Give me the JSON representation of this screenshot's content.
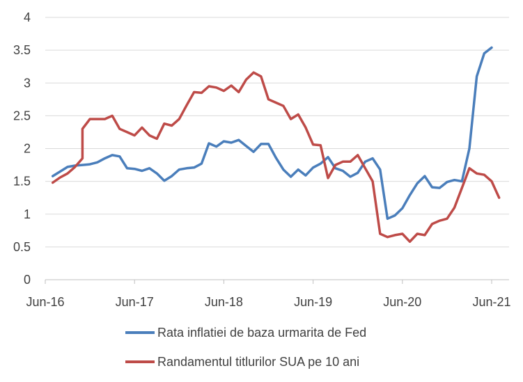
{
  "chart_data": {
    "type": "line",
    "title": "",
    "xlabel": "",
    "ylabel": "",
    "ylim": [
      0,
      4
    ],
    "yticks": [
      0,
      0.5,
      1,
      1.5,
      2,
      2.5,
      3,
      3.5,
      4
    ],
    "ytick_labels": [
      "0",
      "0.5",
      "1",
      "1.5",
      "2",
      "2.5",
      "3",
      "3.5",
      "4"
    ],
    "xlim": [
      "2016-06",
      "2021-08"
    ],
    "xticks": [
      "2016-06",
      "2017-06",
      "2018-06",
      "2019-06",
      "2020-06",
      "2021-06"
    ],
    "xtick_labels": [
      "Jun-16",
      "Jun-17",
      "Jun-18",
      "Jun-19",
      "Jun-20",
      "Jun-21"
    ],
    "grid": "horizontal",
    "legend_position": "bottom",
    "series": [
      {
        "name": "Rata inflatiei de baza urmarita de Fed",
        "color": "#4a7ebb",
        "points": [
          [
            "2016-07",
            1.58
          ],
          [
            "2016-08",
            1.65
          ],
          [
            "2016-09",
            1.72
          ],
          [
            "2016-10",
            1.74
          ],
          [
            "2016-11",
            1.75
          ],
          [
            "2016-12",
            1.76
          ],
          [
            "2017-01",
            1.79
          ],
          [
            "2017-02",
            1.85
          ],
          [
            "2017-03",
            1.9
          ],
          [
            "2017-04",
            1.88
          ],
          [
            "2017-05",
            1.7
          ],
          [
            "2017-06",
            1.69
          ],
          [
            "2017-07",
            1.66
          ],
          [
            "2017-08",
            1.7
          ],
          [
            "2017-09",
            1.62
          ],
          [
            "2017-10",
            1.51
          ],
          [
            "2017-11",
            1.58
          ],
          [
            "2017-12",
            1.68
          ],
          [
            "2018-01",
            1.7
          ],
          [
            "2018-02",
            1.71
          ],
          [
            "2018-03",
            1.77
          ],
          [
            "2018-04",
            2.08
          ],
          [
            "2018-05",
            2.03
          ],
          [
            "2018-06",
            2.11
          ],
          [
            "2018-07",
            2.09
          ],
          [
            "2018-08",
            2.13
          ],
          [
            "2018-09",
            2.04
          ],
          [
            "2018-10",
            1.95
          ],
          [
            "2018-11",
            2.07
          ],
          [
            "2018-12",
            2.07
          ],
          [
            "2019-01",
            1.86
          ],
          [
            "2019-02",
            1.68
          ],
          [
            "2019-03",
            1.57
          ],
          [
            "2019-04",
            1.68
          ],
          [
            "2019-05",
            1.59
          ],
          [
            "2019-06",
            1.71
          ],
          [
            "2019-07",
            1.77
          ],
          [
            "2019-08",
            1.87
          ],
          [
            "2019-09",
            1.7
          ],
          [
            "2019-10",
            1.66
          ],
          [
            "2019-11",
            1.57
          ],
          [
            "2019-12",
            1.63
          ],
          [
            "2020-01",
            1.8
          ],
          [
            "2020-02",
            1.85
          ],
          [
            "2020-03",
            1.68
          ],
          [
            "2020-04",
            0.93
          ],
          [
            "2020-05",
            0.98
          ],
          [
            "2020-06",
            1.09
          ],
          [
            "2020-07",
            1.29
          ],
          [
            "2020-08",
            1.47
          ],
          [
            "2020-09",
            1.58
          ],
          [
            "2020-10",
            1.41
          ],
          [
            "2020-11",
            1.4
          ],
          [
            "2020-12",
            1.49
          ],
          [
            "2021-01",
            1.52
          ],
          [
            "2021-02",
            1.5
          ],
          [
            "2021-03",
            2.0
          ],
          [
            "2021-04",
            3.1
          ],
          [
            "2021-05",
            3.45
          ],
          [
            "2021-06",
            3.54
          ]
        ]
      },
      {
        "name": "Randamentul titlurilor SUA pe 10 ani",
        "color": "#be4b48",
        "points": [
          [
            "2016-07",
            1.48
          ],
          [
            "2016-08",
            1.56
          ],
          [
            "2016-09",
            1.62
          ],
          [
            "2016-10",
            1.72
          ],
          [
            "2016-11",
            1.85
          ],
          [
            "2016-11",
            2.3
          ],
          [
            "2016-12",
            2.45
          ],
          [
            "2017-01",
            2.45
          ],
          [
            "2017-02",
            2.45
          ],
          [
            "2017-03",
            2.5
          ],
          [
            "2017-04",
            2.3
          ],
          [
            "2017-05",
            2.25
          ],
          [
            "2017-06",
            2.2
          ],
          [
            "2017-07",
            2.32
          ],
          [
            "2017-08",
            2.2
          ],
          [
            "2017-09",
            2.15
          ],
          [
            "2017-10",
            2.38
          ],
          [
            "2017-11",
            2.35
          ],
          [
            "2017-12",
            2.45
          ],
          [
            "2018-01",
            2.66
          ],
          [
            "2018-02",
            2.86
          ],
          [
            "2018-03",
            2.85
          ],
          [
            "2018-04",
            2.95
          ],
          [
            "2018-05",
            2.93
          ],
          [
            "2018-06",
            2.88
          ],
          [
            "2018-07",
            2.96
          ],
          [
            "2018-08",
            2.86
          ],
          [
            "2018-09",
            3.05
          ],
          [
            "2018-10",
            3.16
          ],
          [
            "2018-11",
            3.1
          ],
          [
            "2018-12",
            2.75
          ],
          [
            "2019-01",
            2.7
          ],
          [
            "2019-02",
            2.65
          ],
          [
            "2019-03",
            2.45
          ],
          [
            "2019-04",
            2.52
          ],
          [
            "2019-05",
            2.32
          ],
          [
            "2019-06",
            2.06
          ],
          [
            "2019-07",
            2.05
          ],
          [
            "2019-08",
            1.55
          ],
          [
            "2019-09",
            1.75
          ],
          [
            "2019-10",
            1.8
          ],
          [
            "2019-11",
            1.8
          ],
          [
            "2019-12",
            1.9
          ],
          [
            "2020-01",
            1.7
          ],
          [
            "2020-02",
            1.5
          ],
          [
            "2020-03",
            0.7
          ],
          [
            "2020-04",
            0.65
          ],
          [
            "2020-05",
            0.68
          ],
          [
            "2020-06",
            0.7
          ],
          [
            "2020-07",
            0.58
          ],
          [
            "2020-08",
            0.7
          ],
          [
            "2020-09",
            0.68
          ],
          [
            "2020-10",
            0.85
          ],
          [
            "2020-11",
            0.9
          ],
          [
            "2020-12",
            0.93
          ],
          [
            "2021-01",
            1.1
          ],
          [
            "2021-02",
            1.4
          ],
          [
            "2021-03",
            1.7
          ],
          [
            "2021-04",
            1.62
          ],
          [
            "2021-05",
            1.6
          ],
          [
            "2021-06",
            1.5
          ],
          [
            "2021-07",
            1.25
          ]
        ]
      }
    ]
  }
}
